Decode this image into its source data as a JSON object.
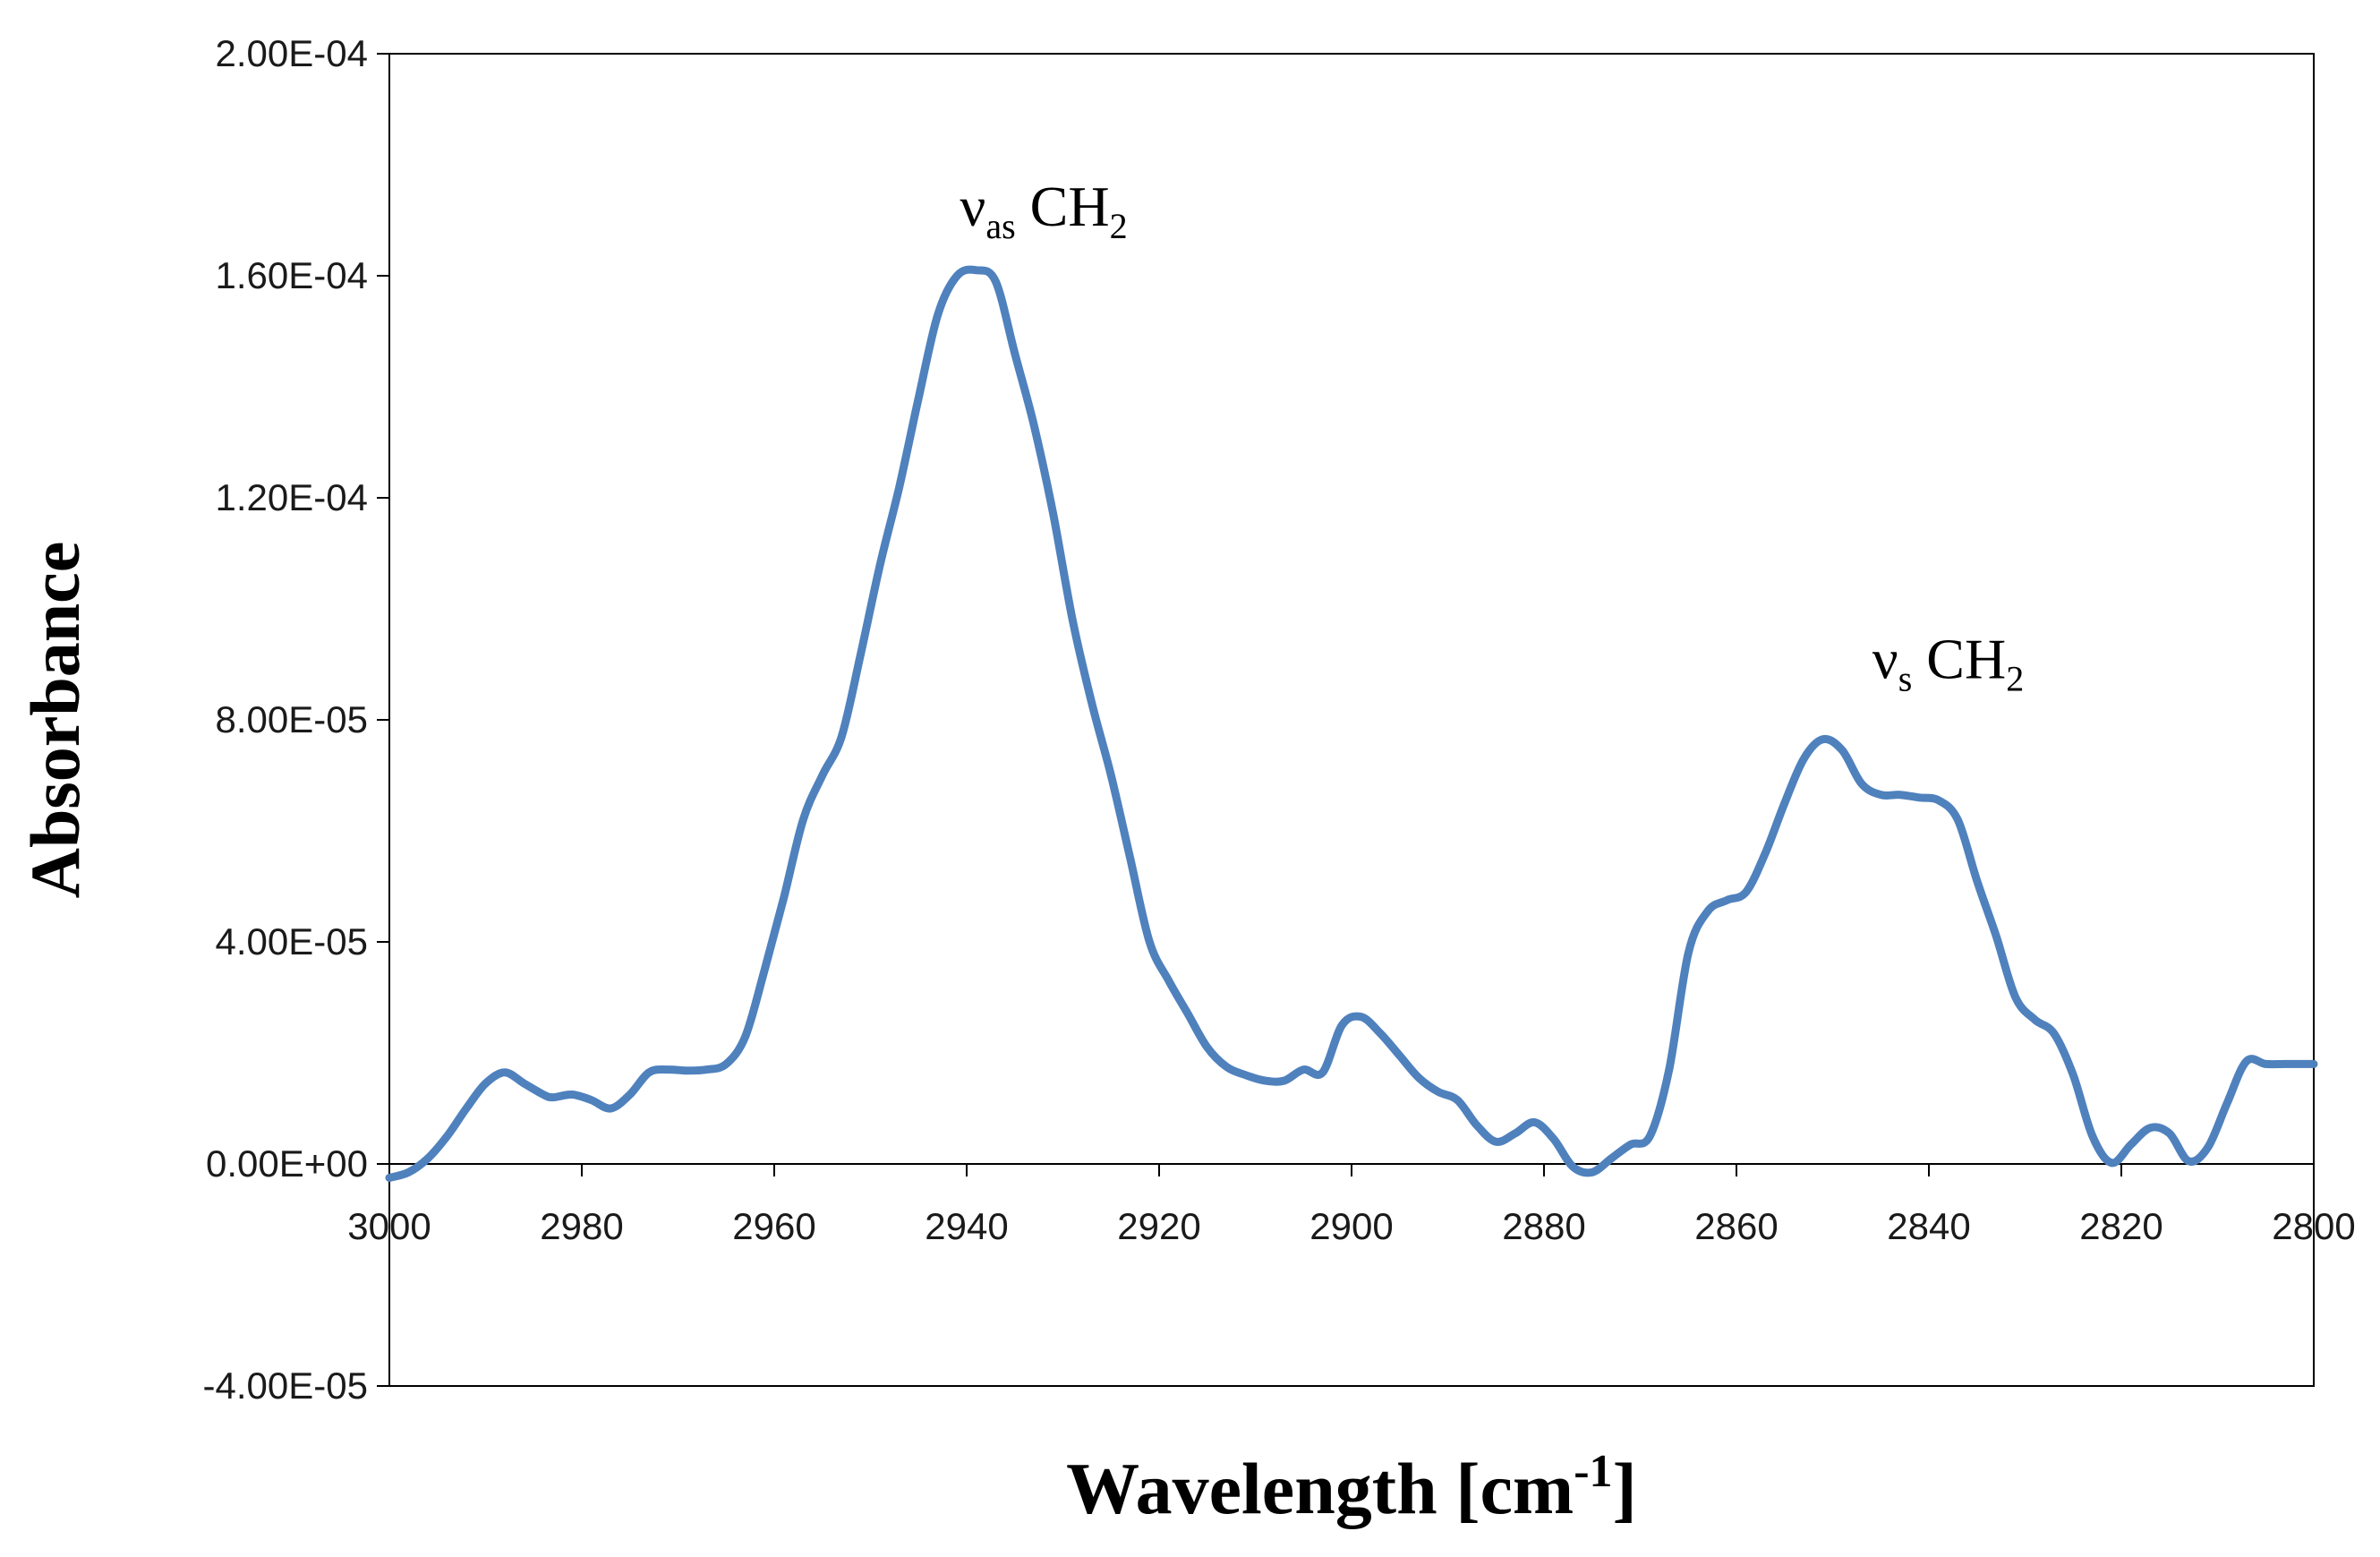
{
  "chart_data": {
    "type": "line",
    "title": "",
    "xlabel": "Wavelength",
    "xlabel_unit": "[cm",
    "xlabel_unit_exp": "-1",
    "xlabel_unit_close": "]",
    "ylabel": "Absorbance",
    "xlim": [
      3000,
      2800
    ],
    "ylim": [
      -4e-05,
      0.0002
    ],
    "grid": false,
    "x_ticks": [
      3000,
      2980,
      2960,
      2940,
      2920,
      2900,
      2880,
      2860,
      2840,
      2820,
      2800
    ],
    "x_tick_labels": [
      "3000",
      "2980",
      "2960",
      "2940",
      "2920",
      "2900",
      "2880",
      "2860",
      "2840",
      "2820",
      "2800"
    ],
    "y_ticks": [
      -4e-05,
      0,
      4e-05,
      8e-05,
      0.00012,
      0.00016,
      0.0002
    ],
    "y_tick_labels": [
      "-4.00E-05",
      "0.00E+00",
      "4.00E-05",
      "8.00E-05",
      "1.20E-04",
      "1.60E-04",
      "2.00E-04"
    ],
    "series": [
      {
        "name": "Absorbance",
        "color": "#4f81bd",
        "x": [
          3000,
          2998,
          2996,
          2994,
          2992,
          2990,
          2988,
          2986,
          2984,
          2983,
          2981,
          2979,
          2977,
          2975,
          2973,
          2971,
          2969,
          2967,
          2965,
          2963,
          2961,
          2959,
          2957,
          2955,
          2953,
          2951,
          2949,
          2947,
          2945,
          2943,
          2941,
          2939,
          2937,
          2935,
          2933,
          2931,
          2929,
          2927,
          2925,
          2923,
          2921,
          2919,
          2917,
          2915,
          2913,
          2911,
          2909,
          2907,
          2905,
          2903,
          2901,
          2899,
          2897,
          2895,
          2893,
          2891,
          2889,
          2887,
          2885,
          2883,
          2881,
          2879,
          2877,
          2875,
          2873,
          2871,
          2869,
          2867,
          2865,
          2863,
          2861,
          2859,
          2857,
          2855,
          2853,
          2851,
          2849,
          2847,
          2845,
          2843,
          2841,
          2839,
          2837,
          2835,
          2833,
          2831,
          2829,
          2827,
          2825,
          2823,
          2821,
          2819,
          2817,
          2815,
          2813,
          2811,
          2809,
          2807,
          2805,
          2803,
          2801,
          2800
        ],
        "y": [
          -2.5e-06,
          -1.5e-06,
          1e-06,
          5e-06,
          1e-05,
          1.45e-05,
          1.65e-05,
          1.45e-05,
          1.25e-05,
          1.2e-05,
          1.25e-05,
          1.15e-05,
          1e-05,
          1.25e-05,
          1.65e-05,
          1.7e-05,
          1.68e-05,
          1.7e-05,
          1.8e-05,
          2.3e-05,
          3.5e-05,
          4.8e-05,
          6.2e-05,
          7e-05,
          7.7e-05,
          9.2e-05,
          0.000108,
          0.000122,
          0.000138,
          0.000153,
          0.00016,
          0.000161,
          0.000159,
          0.000146,
          0.000133,
          0.000117,
          9.8e-05,
          8.3e-05,
          7e-05,
          5.5e-05,
          4e-05,
          3.3e-05,
          2.7e-05,
          2.1e-05,
          1.75e-05,
          1.6e-05,
          1.5e-05,
          1.5e-05,
          1.7e-05,
          1.65e-05,
          2.5e-05,
          2.65e-05,
          2.35e-05,
          1.95e-05,
          1.55e-05,
          1.3e-05,
          1.15e-05,
          7e-06,
          4e-06,
          5.5e-06,
          7.5e-06,
          4.5e-06,
          -5e-07,
          -1.5e-06,
          1e-06,
          3.5e-06,
          5e-06,
          1.7e-05,
          3.8e-05,
          4.55e-05,
          4.75e-05,
          4.9e-05,
          5.6e-05,
          6.5e-05,
          7.3e-05,
          7.65e-05,
          7.45e-05,
          6.85e-05,
          6.65e-05,
          6.65e-05,
          6.6e-05,
          6.55e-05,
          6.2e-05,
          5.1e-05,
          4.1e-05,
          3e-05,
          2.6e-05,
          2.35e-05,
          1.6e-05,
          5e-06,
          2e-07,
          3.5e-06,
          6.5e-06,
          5.5e-06,
          5e-07,
          3e-06,
          1.1e-05,
          1.85e-05,
          1.8e-05,
          1.8e-05,
          1.8e-05,
          1.8e-05
        ]
      }
    ],
    "annotations": [
      {
        "id": "vas",
        "symbol": "ν",
        "sub": "as",
        "text": "CH",
        "sub2": "2",
        "x": 2932,
        "y": 0.000169
      },
      {
        "id": "vs",
        "symbol": "ν",
        "sub": "s",
        "text": "CH",
        "sub2": "2",
        "x": 2838,
        "y": 8.75e-05
      }
    ]
  }
}
